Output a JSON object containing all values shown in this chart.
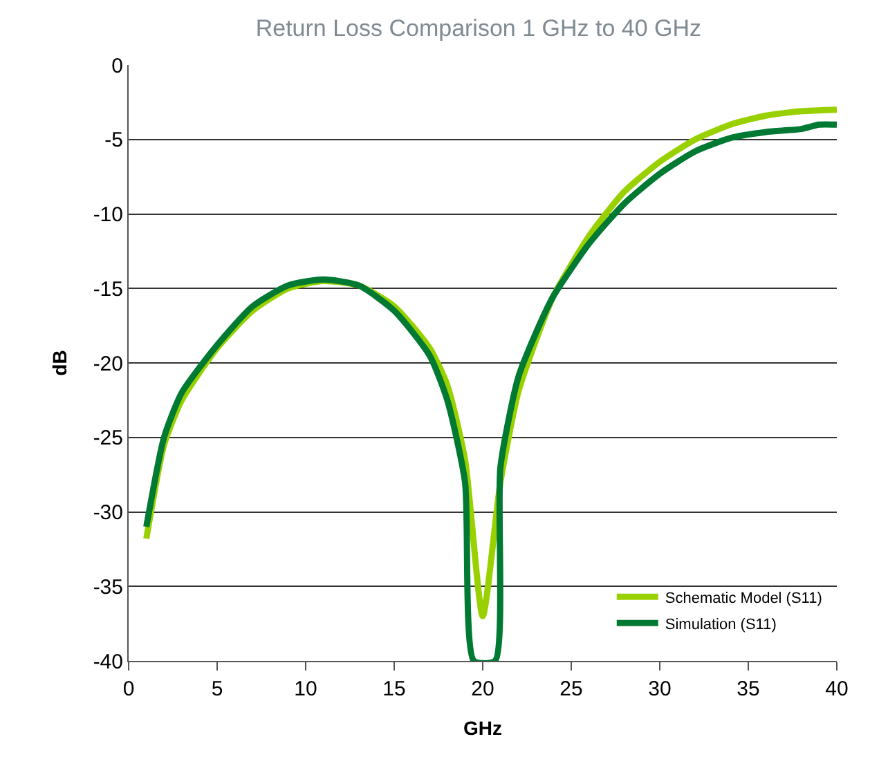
{
  "chart_data": {
    "type": "line",
    "title": "Return Loss Comparison 1 GHz to 40 GHz",
    "xlabel": "GHz",
    "ylabel": "dB",
    "xlim": [
      0,
      40
    ],
    "xticks": [
      0,
      5,
      10,
      15,
      20,
      25,
      30,
      35,
      40
    ],
    "ylim": [
      -40,
      0
    ],
    "yticks": [
      -40,
      -35,
      -30,
      -25,
      -20,
      -15,
      -10,
      -5,
      0
    ],
    "grid": "y",
    "legend": "bottom right",
    "marker": "none",
    "line_style": "solid",
    "series": [
      {
        "name": "Schematic Model (S11)",
        "color": "#99d100",
        "x": [
          1,
          2,
          3,
          5,
          7,
          9,
          11,
          13,
          15,
          17,
          18,
          19,
          20,
          21,
          22,
          23,
          24,
          26,
          28,
          30,
          32,
          34,
          36,
          38,
          40
        ],
        "values": [
          -31.8,
          -25.5,
          -22.5,
          -19,
          -16.5,
          -15,
          -14.5,
          -14.8,
          -16.2,
          -19,
          -21.5,
          -26.5,
          -37,
          -28,
          -22,
          -18.5,
          -15.5,
          -11.5,
          -8.5,
          -6.5,
          -5,
          -4,
          -3.4,
          -3.1,
          -3.0
        ]
      },
      {
        "name": "Simulation (S11)",
        "color": "#007a33",
        "x": [
          1,
          2,
          3,
          5,
          7,
          9,
          11,
          13,
          15,
          17,
          18,
          19,
          19.5,
          20.7,
          21,
          22,
          23,
          24,
          26,
          28,
          30,
          32,
          34,
          36,
          37,
          38,
          39,
          40
        ],
        "values": [
          -31,
          -25,
          -22,
          -18.8,
          -16.2,
          -14.8,
          -14.4,
          -14.8,
          -16.5,
          -19.5,
          -22.5,
          -28,
          -40,
          -40,
          -27,
          -21,
          -18,
          -15.5,
          -12,
          -9.3,
          -7.3,
          -5.8,
          -4.9,
          -4.5,
          -4.4,
          -4.3,
          -4.0,
          -4.0
        ]
      }
    ]
  }
}
